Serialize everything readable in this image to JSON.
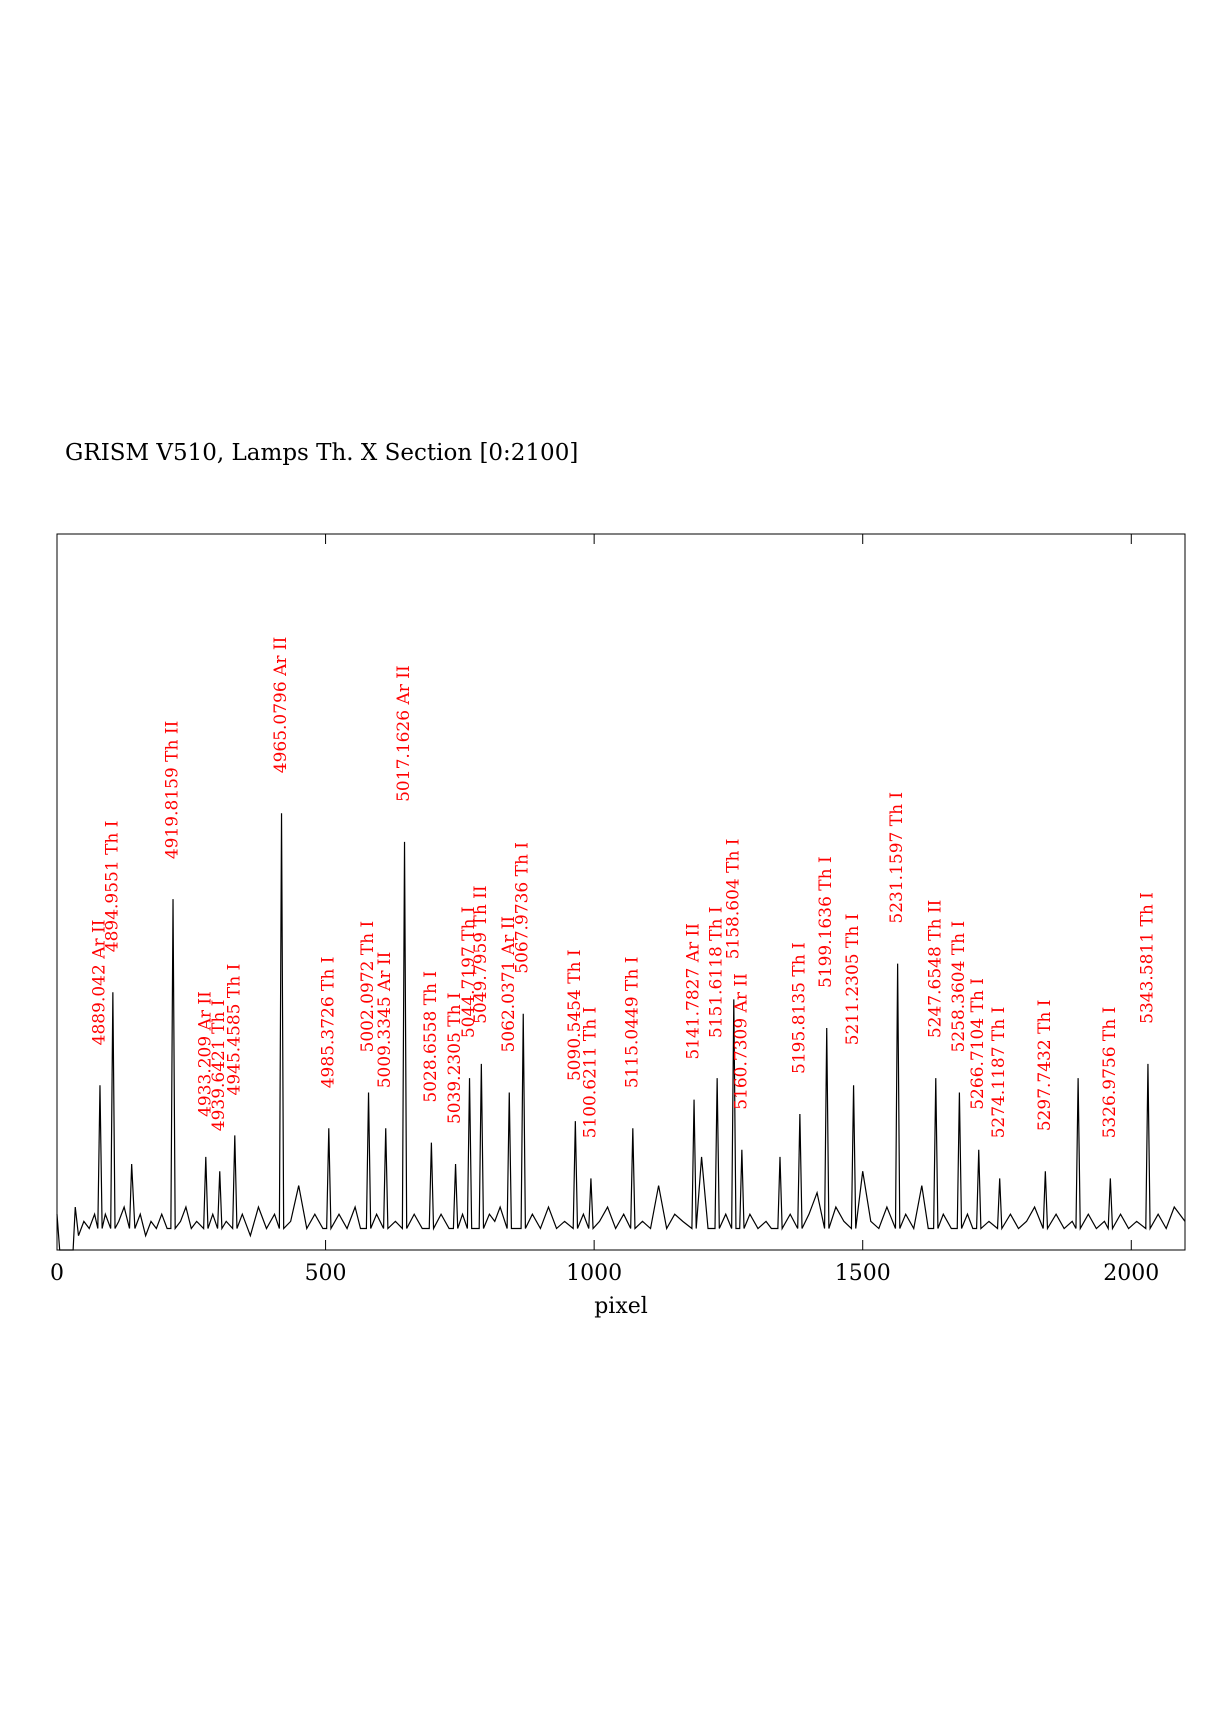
{
  "chart_data": {
    "type": "line",
    "title": "GRISM V510, Lamps Th. X Section [0:2100]",
    "x_label": "pixel",
    "xlim": [
      0,
      2100
    ],
    "xticks": [
      0,
      500,
      1000,
      1500,
      2000
    ],
    "ylim": [
      0,
      100
    ],
    "color": "#000000",
    "annotation_color": "#ff0000",
    "x": [
      0,
      5,
      30,
      34,
      40,
      50,
      60,
      70,
      76,
      80,
      84,
      90,
      100,
      104,
      108,
      115,
      125,
      135,
      139,
      145,
      155,
      165,
      175,
      185,
      195,
      205,
      212,
      216,
      220,
      230,
      240,
      250,
      260,
      273,
      277,
      281,
      290,
      299,
      303,
      307,
      315,
      327,
      331,
      335,
      345,
      360,
      375,
      390,
      405,
      414,
      418,
      422,
      435,
      450,
      465,
      480,
      495,
      502,
      506,
      510,
      525,
      540,
      555,
      565,
      576,
      580,
      584,
      595,
      608,
      612,
      616,
      630,
      643,
      647,
      651,
      665,
      680,
      693,
      697,
      701,
      715,
      730,
      738,
      742,
      746,
      755,
      764,
      768,
      772,
      786,
      790,
      794,
      805,
      815,
      825,
      838,
      842,
      846,
      856,
      864,
      868,
      872,
      885,
      900,
      915,
      930,
      945,
      961,
      965,
      969,
      980,
      990,
      994,
      998,
      1010,
      1025,
      1040,
      1055,
      1068,
      1072,
      1076,
      1090,
      1105,
      1120,
      1135,
      1150,
      1165,
      1182,
      1186,
      1190,
      1200,
      1212,
      1225,
      1229,
      1233,
      1245,
      1256,
      1260,
      1264,
      1271,
      1275,
      1279,
      1290,
      1305,
      1320,
      1330,
      1342,
      1346,
      1350,
      1365,
      1379,
      1383,
      1387,
      1400,
      1415,
      1429,
      1433,
      1437,
      1450,
      1465,
      1479,
      1483,
      1487,
      1500,
      1515,
      1530,
      1545,
      1561,
      1565,
      1569,
      1580,
      1595,
      1610,
      1622,
      1632,
      1636,
      1640,
      1650,
      1665,
      1676,
      1680,
      1684,
      1695,
      1705,
      1712,
      1716,
      1720,
      1735,
      1751,
      1755,
      1759,
      1775,
      1790,
      1805,
      1820,
      1836,
      1840,
      1844,
      1860,
      1875,
      1890,
      1897,
      1901,
      1905,
      1920,
      1935,
      1950,
      1957,
      1961,
      1965,
      1980,
      1995,
      2010,
      2027,
      2031,
      2035,
      2050,
      2065,
      2080,
      2100
    ],
    "values": [
      5,
      0,
      0,
      6,
      2,
      4,
      3,
      5,
      3,
      23,
      3,
      5,
      3,
      36,
      3,
      4,
      6,
      3,
      12,
      3,
      5,
      2,
      4,
      3,
      5,
      3,
      3,
      49,
      3,
      4,
      6,
      3,
      4,
      3,
      13,
      3,
      5,
      3,
      11,
      3,
      4,
      3,
      16,
      3,
      5,
      2,
      6,
      3,
      5,
      3,
      61,
      3,
      4,
      9,
      3,
      5,
      3,
      3,
      17,
      3,
      5,
      3,
      6,
      3,
      3,
      22,
      3,
      5,
      3,
      17,
      3,
      4,
      3,
      57,
      3,
      5,
      3,
      3,
      15,
      3,
      5,
      3,
      3,
      12,
      3,
      5,
      3,
      24,
      3,
      3,
      26,
      3,
      5,
      4,
      6,
      3,
      22,
      3,
      3,
      3,
      33,
      3,
      5,
      3,
      6,
      3,
      4,
      3,
      18,
      3,
      5,
      3,
      10,
      3,
      4,
      6,
      3,
      5,
      3,
      17,
      3,
      4,
      3,
      9,
      3,
      5,
      4,
      3,
      21,
      3,
      13,
      3,
      3,
      24,
      3,
      5,
      3,
      35,
      3,
      3,
      14,
      3,
      5,
      3,
      4,
      3,
      3,
      13,
      3,
      5,
      3,
      19,
      3,
      5,
      8,
      3,
      31,
      3,
      6,
      4,
      3,
      23,
      3,
      11,
      4,
      3,
      6,
      3,
      40,
      3,
      5,
      3,
      9,
      3,
      3,
      24,
      3,
      5,
      3,
      3,
      22,
      3,
      5,
      3,
      3,
      14,
      3,
      4,
      3,
      10,
      3,
      5,
      3,
      4,
      6,
      3,
      11,
      3,
      5,
      3,
      4,
      3,
      24,
      3,
      5,
      3,
      4,
      3,
      10,
      3,
      5,
      3,
      4,
      3,
      26,
      3,
      5,
      3,
      6,
      4
    ],
    "annotations": [
      {
        "text": "4889.042  Ar II",
        "x": 80
      },
      {
        "text": "4894.9551  Th I",
        "x": 104
      },
      {
        "text": "4919.8159  Th II",
        "x": 216
      },
      {
        "text": "4933.209  Ar II",
        "x": 277
      },
      {
        "text": "4939.6421  Th I",
        "x": 303
      },
      {
        "text": "4945.4585  Th I",
        "x": 331
      },
      {
        "text": "4965.0796  Ar II",
        "x": 418
      },
      {
        "text": "4985.3726  Th I",
        "x": 506
      },
      {
        "text": "5002.0972  Th I",
        "x": 580
      },
      {
        "text": "5009.3345  Ar II",
        "x": 612
      },
      {
        "text": "5017.1626  Ar II",
        "x": 647
      },
      {
        "text": "5028.6558  Th I",
        "x": 697
      },
      {
        "text": "5039.2305  Th I",
        "x": 742
      },
      {
        "text": "5044.7197  Th I",
        "x": 768
      },
      {
        "text": "5049.7959  Th II",
        "x": 790
      },
      {
        "text": "5062.0371  Ar II",
        "x": 842
      },
      {
        "text": "5067.9736  Th I",
        "x": 868
      },
      {
        "text": "5090.5454  Th I",
        "x": 965
      },
      {
        "text": "5100.6211  Th I",
        "x": 994
      },
      {
        "text": "5115.0449  Th I",
        "x": 1072
      },
      {
        "text": "5141.7827  Ar II",
        "x": 1186
      },
      {
        "text": "5151.6118  Th I",
        "x": 1229
      },
      {
        "text": "5158.604  Th I",
        "x": 1260
      },
      {
        "text": "5160.7309  Ar II",
        "x": 1275
      },
      {
        "text": "5195.8135  Th I",
        "x": 1383
      },
      {
        "text": "5199.1636  Th I",
        "x": 1433
      },
      {
        "text": "5211.2305  Th I",
        "x": 1483
      },
      {
        "text": "5231.1597  Th I",
        "x": 1565
      },
      {
        "text": "5247.6548  Th II",
        "x": 1636
      },
      {
        "text": "5258.3604  Th I",
        "x": 1680
      },
      {
        "text": "5266.7104  Th I",
        "x": 1716
      },
      {
        "text": "5274.1187  Th I",
        "x": 1755
      },
      {
        "text": "5297.7432  Th I",
        "x": 1840
      },
      {
        "text": "5326.9756  Th I",
        "x": 1961
      },
      {
        "text": "5343.5811  Th I",
        "x": 2031
      }
    ]
  }
}
